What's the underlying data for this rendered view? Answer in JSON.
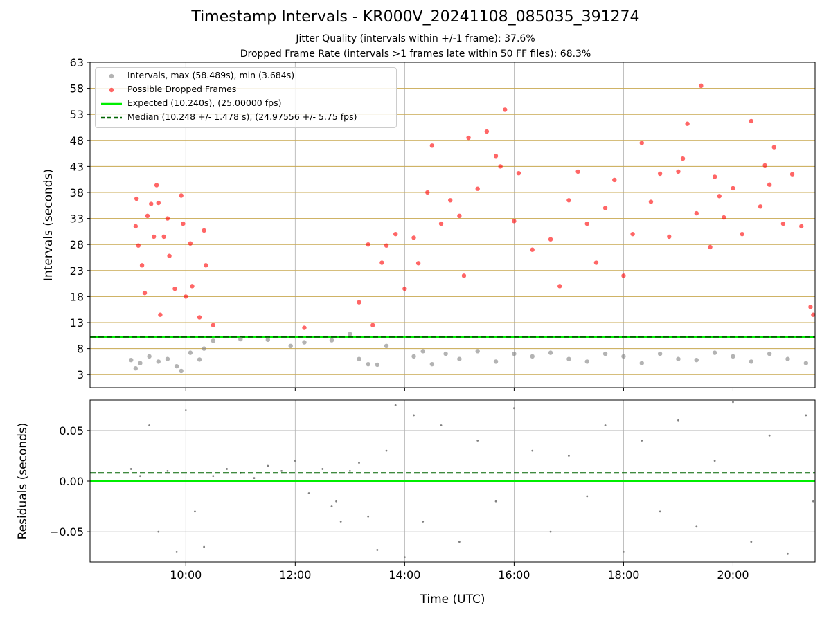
{
  "title": "Timestamp Intervals - KR000V_20241108_085035_391274",
  "subtitle_1": "Jitter Quality (intervals within +/-1 frame): 37.6%",
  "subtitle_2": "Dropped Frame Rate (intervals >1 frames late within 50 FF files): 68.3%",
  "colors": {
    "interval_points": "#808080",
    "dropped_points": "#ff0000",
    "expected_line": "#00ee00",
    "median_line": "#006400",
    "major_grid": "#c8a850",
    "minor_grid": "#b0b0b0"
  },
  "legend": {
    "placement": "top-left",
    "items": [
      {
        "label": "Intervals, max (58.489s), min (3.684s)",
        "marker": "circle",
        "color": "#808080"
      },
      {
        "label": "Possible Dropped Frames",
        "marker": "circle",
        "color": "#ff0000"
      },
      {
        "label": "Expected (10.240s), (25.00000 fps)",
        "marker": "solid-line",
        "color": "#00ee00"
      },
      {
        "label": "Median (10.248 +/- 1.478 s), (24.97556 +/- 5.75 fps)",
        "marker": "dashed-line",
        "color": "#006400"
      }
    ]
  },
  "chart_data": [
    {
      "type": "scatter",
      "panel": "top",
      "xlabel": "",
      "ylabel": "Intervals (seconds)",
      "xlim": [
        "08:15",
        "21:30"
      ],
      "ylim": [
        0.5,
        63
      ],
      "yticks": [
        3,
        8,
        13,
        18,
        23,
        28,
        33,
        38,
        43,
        48,
        53,
        58,
        63
      ],
      "xticks": [
        "10:00",
        "12:00",
        "14:00",
        "16:00",
        "18:00",
        "20:00"
      ],
      "grid": true,
      "expected_interval": 10.24,
      "median_interval": 10.248,
      "max_interval": 58.489,
      "min_interval": 3.684,
      "series": [
        {
          "name": "Intervals, max (58.489s), min (3.684s)",
          "points": [
            [
              "09:00",
              5.8
            ],
            [
              "09:05",
              4.2
            ],
            [
              "09:10",
              5.2
            ],
            [
              "09:20",
              6.5
            ],
            [
              "09:30",
              5.5
            ],
            [
              "09:40",
              6.0
            ],
            [
              "09:50",
              4.6
            ],
            [
              "09:55",
              3.7
            ],
            [
              "10:05",
              7.2
            ],
            [
              "10:15",
              5.9
            ],
            [
              "10:20",
              8.0
            ],
            [
              "10:30",
              9.5
            ],
            [
              "11:00",
              9.8
            ],
            [
              "11:30",
              9.7
            ],
            [
              "11:55",
              8.5
            ],
            [
              "12:10",
              9.2
            ],
            [
              "12:40",
              9.6
            ],
            [
              "13:00",
              10.8
            ],
            [
              "13:10",
              6.0
            ],
            [
              "13:20",
              5.0
            ],
            [
              "13:30",
              4.9
            ],
            [
              "13:40",
              8.5
            ],
            [
              "14:10",
              6.5
            ],
            [
              "14:20",
              7.5
            ],
            [
              "14:30",
              5.0
            ],
            [
              "14:45",
              7.0
            ],
            [
              "15:00",
              6.0
            ],
            [
              "15:20",
              7.5
            ],
            [
              "15:40",
              5.5
            ],
            [
              "16:00",
              7.0
            ],
            [
              "16:20",
              6.5
            ],
            [
              "16:40",
              7.2
            ],
            [
              "17:00",
              6.0
            ],
            [
              "17:20",
              5.5
            ],
            [
              "17:40",
              7.0
            ],
            [
              "18:00",
              6.5
            ],
            [
              "18:20",
              5.2
            ],
            [
              "18:40",
              7.0
            ],
            [
              "19:00",
              6.0
            ],
            [
              "19:20",
              5.8
            ],
            [
              "19:40",
              7.2
            ],
            [
              "20:00",
              6.5
            ],
            [
              "20:20",
              5.5
            ],
            [
              "20:40",
              7.0
            ],
            [
              "21:00",
              6.0
            ],
            [
              "21:20",
              5.2
            ]
          ]
        },
        {
          "name": "Possible Dropped Frames",
          "points": [
            [
              "09:05",
              31.5
            ],
            [
              "09:06",
              36.8
            ],
            [
              "09:08",
              27.8
            ],
            [
              "09:12",
              24.0
            ],
            [
              "09:15",
              18.7
            ],
            [
              "09:18",
              33.5
            ],
            [
              "09:22",
              35.8
            ],
            [
              "09:25",
              29.5
            ],
            [
              "09:28",
              39.4
            ],
            [
              "09:30",
              36.0
            ],
            [
              "09:32",
              14.5
            ],
            [
              "09:36",
              29.5
            ],
            [
              "09:40",
              33.0
            ],
            [
              "09:42",
              25.8
            ],
            [
              "09:48",
              19.5
            ],
            [
              "09:55",
              37.4
            ],
            [
              "09:57",
              32.0
            ],
            [
              "10:00",
              18.0
            ],
            [
              "10:05",
              28.2
            ],
            [
              "10:07",
              20.0
            ],
            [
              "10:15",
              14.0
            ],
            [
              "10:20",
              30.7
            ],
            [
              "10:22",
              24.0
            ],
            [
              "10:30",
              12.5
            ],
            [
              "12:10",
              12.0
            ],
            [
              "13:10",
              16.9
            ],
            [
              "13:20",
              28.0
            ],
            [
              "13:25",
              12.5
            ],
            [
              "13:35",
              24.5
            ],
            [
              "13:40",
              27.8
            ],
            [
              "13:50",
              30.0
            ],
            [
              "14:00",
              19.5
            ],
            [
              "14:10",
              29.3
            ],
            [
              "14:15",
              24.4
            ],
            [
              "14:25",
              38.0
            ],
            [
              "14:30",
              47.0
            ],
            [
              "14:40",
              32.0
            ],
            [
              "14:50",
              36.5
            ],
            [
              "15:00",
              33.5
            ],
            [
              "15:05",
              22.0
            ],
            [
              "15:10",
              48.5
            ],
            [
              "15:20",
              38.7
            ],
            [
              "15:30",
              49.7
            ],
            [
              "15:40",
              45.0
            ],
            [
              "15:45",
              43.0
            ],
            [
              "15:50",
              53.9
            ],
            [
              "16:00",
              32.5
            ],
            [
              "16:05",
              41.7
            ],
            [
              "16:20",
              27.0
            ],
            [
              "16:40",
              29.0
            ],
            [
              "16:50",
              20.0
            ],
            [
              "17:00",
              36.5
            ],
            [
              "17:10",
              42.0
            ],
            [
              "17:20",
              32.0
            ],
            [
              "17:30",
              24.5
            ],
            [
              "17:40",
              35.0
            ],
            [
              "17:50",
              40.4
            ],
            [
              "18:00",
              22.0
            ],
            [
              "18:10",
              30.0
            ],
            [
              "18:20",
              47.5
            ],
            [
              "18:30",
              36.2
            ],
            [
              "18:40",
              41.6
            ],
            [
              "18:50",
              29.5
            ],
            [
              "19:00",
              42.0
            ],
            [
              "19:05",
              44.5
            ],
            [
              "19:10",
              51.2
            ],
            [
              "19:20",
              34.0
            ],
            [
              "19:25",
              58.5
            ],
            [
              "19:35",
              27.5
            ],
            [
              "19:40",
              41.0
            ],
            [
              "19:45",
              37.3
            ],
            [
              "19:50",
              33.2
            ],
            [
              "20:00",
              38.8
            ],
            [
              "20:10",
              30.0
            ],
            [
              "20:20",
              51.7
            ],
            [
              "20:30",
              35.3
            ],
            [
              "20:35",
              43.2
            ],
            [
              "20:40",
              39.5
            ],
            [
              "20:45",
              46.7
            ],
            [
              "20:55",
              32.0
            ],
            [
              "21:05",
              41.5
            ],
            [
              "21:15",
              31.5
            ],
            [
              "21:25",
              16.0
            ],
            [
              "21:28",
              14.5
            ]
          ]
        }
      ]
    },
    {
      "type": "scatter",
      "panel": "bottom",
      "xlabel": "Time (UTC)",
      "ylabel": "Residuals (seconds)",
      "xlim": [
        "08:15",
        "21:30"
      ],
      "ylim": [
        -0.08,
        0.08
      ],
      "yticks": [
        "0.05",
        "0.00",
        "−0.05"
      ],
      "xticks": [
        "10:00",
        "12:00",
        "14:00",
        "16:00",
        "18:00",
        "20:00"
      ],
      "grid": true,
      "expected_residual": 0.0,
      "median_residual": 0.008,
      "series": [
        {
          "name": "Residuals",
          "points": [
            [
              "09:00",
              0.012
            ],
            [
              "09:10",
              0.005
            ],
            [
              "09:20",
              0.055
            ],
            [
              "09:30",
              -0.05
            ],
            [
              "09:40",
              0.01
            ],
            [
              "09:50",
              -0.07
            ],
            [
              "10:00",
              0.07
            ],
            [
              "10:10",
              -0.03
            ],
            [
              "10:20",
              -0.065
            ],
            [
              "10:30",
              0.005
            ],
            [
              "10:45",
              0.012
            ],
            [
              "11:00",
              0.008
            ],
            [
              "11:15",
              0.003
            ],
            [
              "11:30",
              0.015
            ],
            [
              "11:45",
              0.01
            ],
            [
              "12:00",
              0.02
            ],
            [
              "12:15",
              -0.012
            ],
            [
              "12:30",
              0.012
            ],
            [
              "12:45",
              -0.02
            ],
            [
              "13:00",
              0.01
            ],
            [
              "12:40",
              -0.025
            ],
            [
              "12:50",
              -0.04
            ],
            [
              "13:10",
              0.018
            ],
            [
              "13:20",
              -0.035
            ],
            [
              "13:30",
              -0.068
            ],
            [
              "13:40",
              0.03
            ],
            [
              "13:50",
              0.075
            ],
            [
              "14:00",
              -0.075
            ],
            [
              "14:10",
              0.065
            ],
            [
              "14:20",
              -0.04
            ],
            [
              "14:40",
              0.055
            ],
            [
              "15:00",
              -0.06
            ],
            [
              "15:20",
              0.04
            ],
            [
              "15:40",
              -0.02
            ],
            [
              "16:00",
              0.072
            ],
            [
              "16:20",
              0.03
            ],
            [
              "16:40",
              -0.05
            ],
            [
              "17:00",
              0.025
            ],
            [
              "17:20",
              -0.015
            ],
            [
              "17:40",
              0.055
            ],
            [
              "18:00",
              -0.07
            ],
            [
              "18:20",
              0.04
            ],
            [
              "18:40",
              -0.03
            ],
            [
              "19:00",
              0.06
            ],
            [
              "19:20",
              -0.045
            ],
            [
              "19:40",
              0.02
            ],
            [
              "20:00",
              0.078
            ],
            [
              "20:20",
              -0.06
            ],
            [
              "20:40",
              0.045
            ],
            [
              "21:00",
              -0.072
            ],
            [
              "21:20",
              0.065
            ],
            [
              "21:28",
              -0.02
            ]
          ]
        }
      ]
    }
  ]
}
